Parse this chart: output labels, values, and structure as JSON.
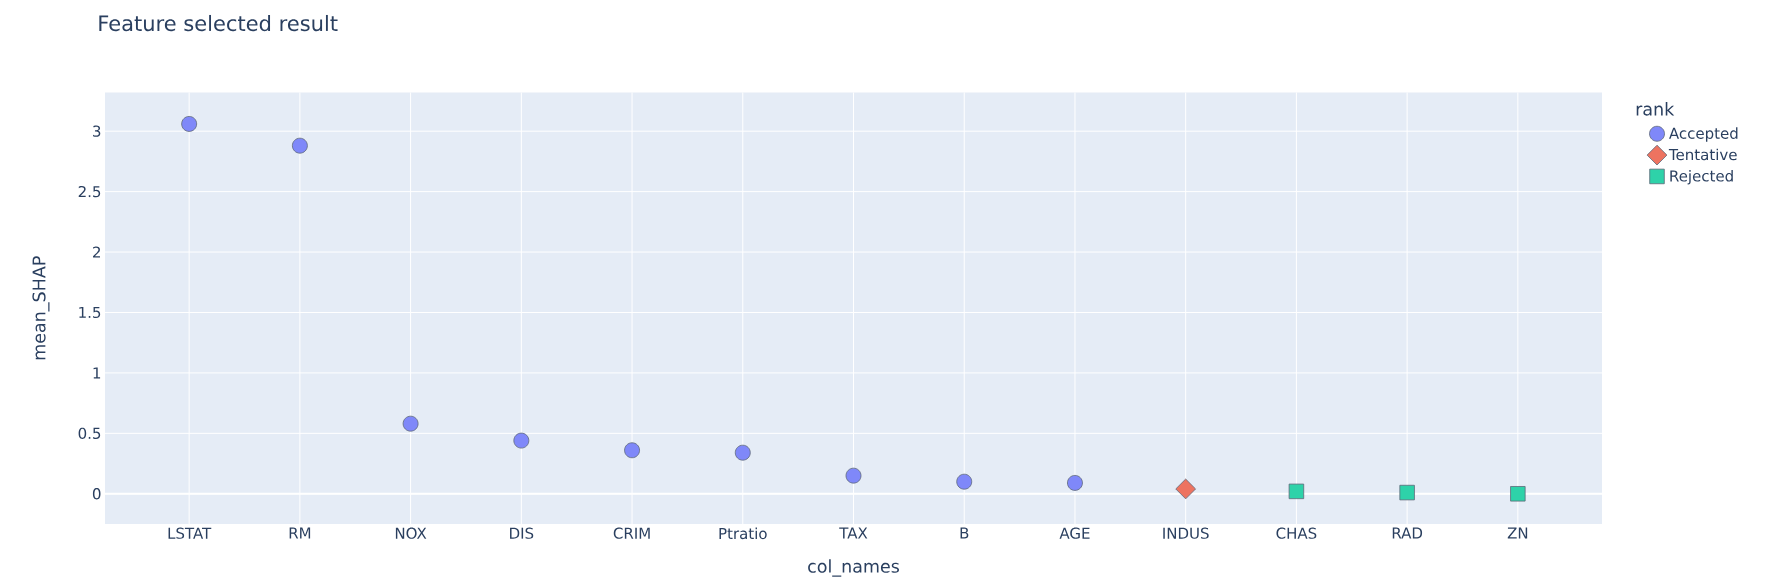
{
  "chart_data": {
    "type": "scatter",
    "title": "Feature selected result",
    "xlabel": "col_names",
    "ylabel": "mean_SHAP",
    "legend_title": "rank",
    "categories": [
      "LSTAT",
      "RM",
      "NOX",
      "DIS",
      "CRIM",
      "Ptratio",
      "TAX",
      "B",
      "AGE",
      "INDUS",
      "CHAS",
      "RAD",
      "ZN"
    ],
    "series": [
      {
        "name": "Accepted",
        "color": "#7f88f9",
        "marker": "circle",
        "values": [
          3.06,
          2.88,
          0.58,
          0.44,
          0.36,
          0.34,
          0.15,
          0.1,
          0.09,
          null,
          null,
          null,
          null
        ]
      },
      {
        "name": "Tentative",
        "color": "#ed7360",
        "marker": "diamond",
        "values": [
          null,
          null,
          null,
          null,
          null,
          null,
          null,
          null,
          null,
          0.04,
          null,
          null,
          null
        ]
      },
      {
        "name": "Rejected",
        "color": "#2ed2a9",
        "marker": "square",
        "values": [
          null,
          null,
          null,
          null,
          null,
          null,
          null,
          null,
          null,
          null,
          0.02,
          0.01,
          0.0
        ]
      }
    ],
    "ylim": [
      -0.25,
      3.32
    ],
    "yticks": [
      0,
      0.5,
      1,
      1.5,
      2,
      2.5,
      3
    ],
    "grid": true,
    "legend": "top right",
    "ref_lines": [
      {
        "axis": "y",
        "value": 0,
        "color": "#ffffff"
      }
    ]
  }
}
